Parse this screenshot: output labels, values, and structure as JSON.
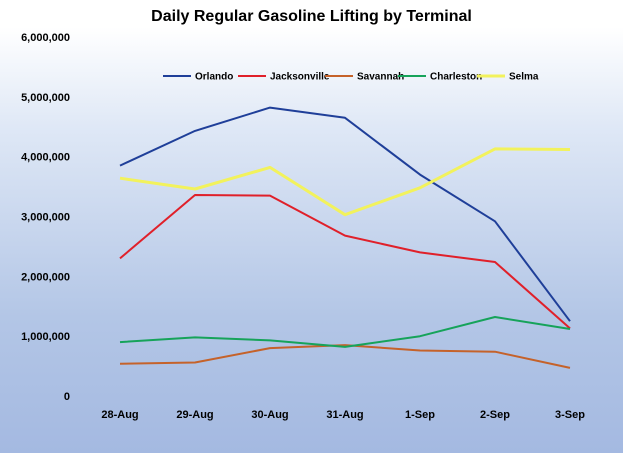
{
  "chart_data": {
    "type": "line",
    "title": "Daily Regular Gasoline Lifting by Terminal",
    "xlabel": "",
    "ylabel": "",
    "categories": [
      "28-Aug",
      "29-Aug",
      "30-Aug",
      "31-Aug",
      "1-Sep",
      "2-Sep",
      "3-Sep"
    ],
    "ylim": [
      0,
      6000000
    ],
    "yticks": [
      0,
      1000000,
      2000000,
      3000000,
      4000000,
      5000000,
      6000000
    ],
    "ytick_labels": [
      "0",
      "1,000,000",
      "2,000,000",
      "3,000,000",
      "4,000,000",
      "5,000,000",
      "6,000,000"
    ],
    "grid": false,
    "legend_position": "top",
    "series": [
      {
        "name": "Orlando",
        "color": "#1f3f99",
        "values": [
          3850000,
          4430000,
          4820000,
          4650000,
          3700000,
          2920000,
          1250000
        ]
      },
      {
        "name": "Jacksonville",
        "color": "#e0202a",
        "values": [
          2300000,
          3360000,
          3350000,
          2680000,
          2400000,
          2240000,
          1130000
        ]
      },
      {
        "name": "Savannah",
        "color": "#c5622a",
        "values": [
          540000,
          560000,
          800000,
          850000,
          760000,
          740000,
          470000
        ]
      },
      {
        "name": "Charleston",
        "color": "#16a35a",
        "values": [
          900000,
          980000,
          930000,
          820000,
          1000000,
          1320000,
          1120000
        ]
      },
      {
        "name": "Selma",
        "color": "#f2f25c",
        "values": [
          3640000,
          3460000,
          3820000,
          3030000,
          3480000,
          4130000,
          4120000
        ]
      }
    ]
  }
}
